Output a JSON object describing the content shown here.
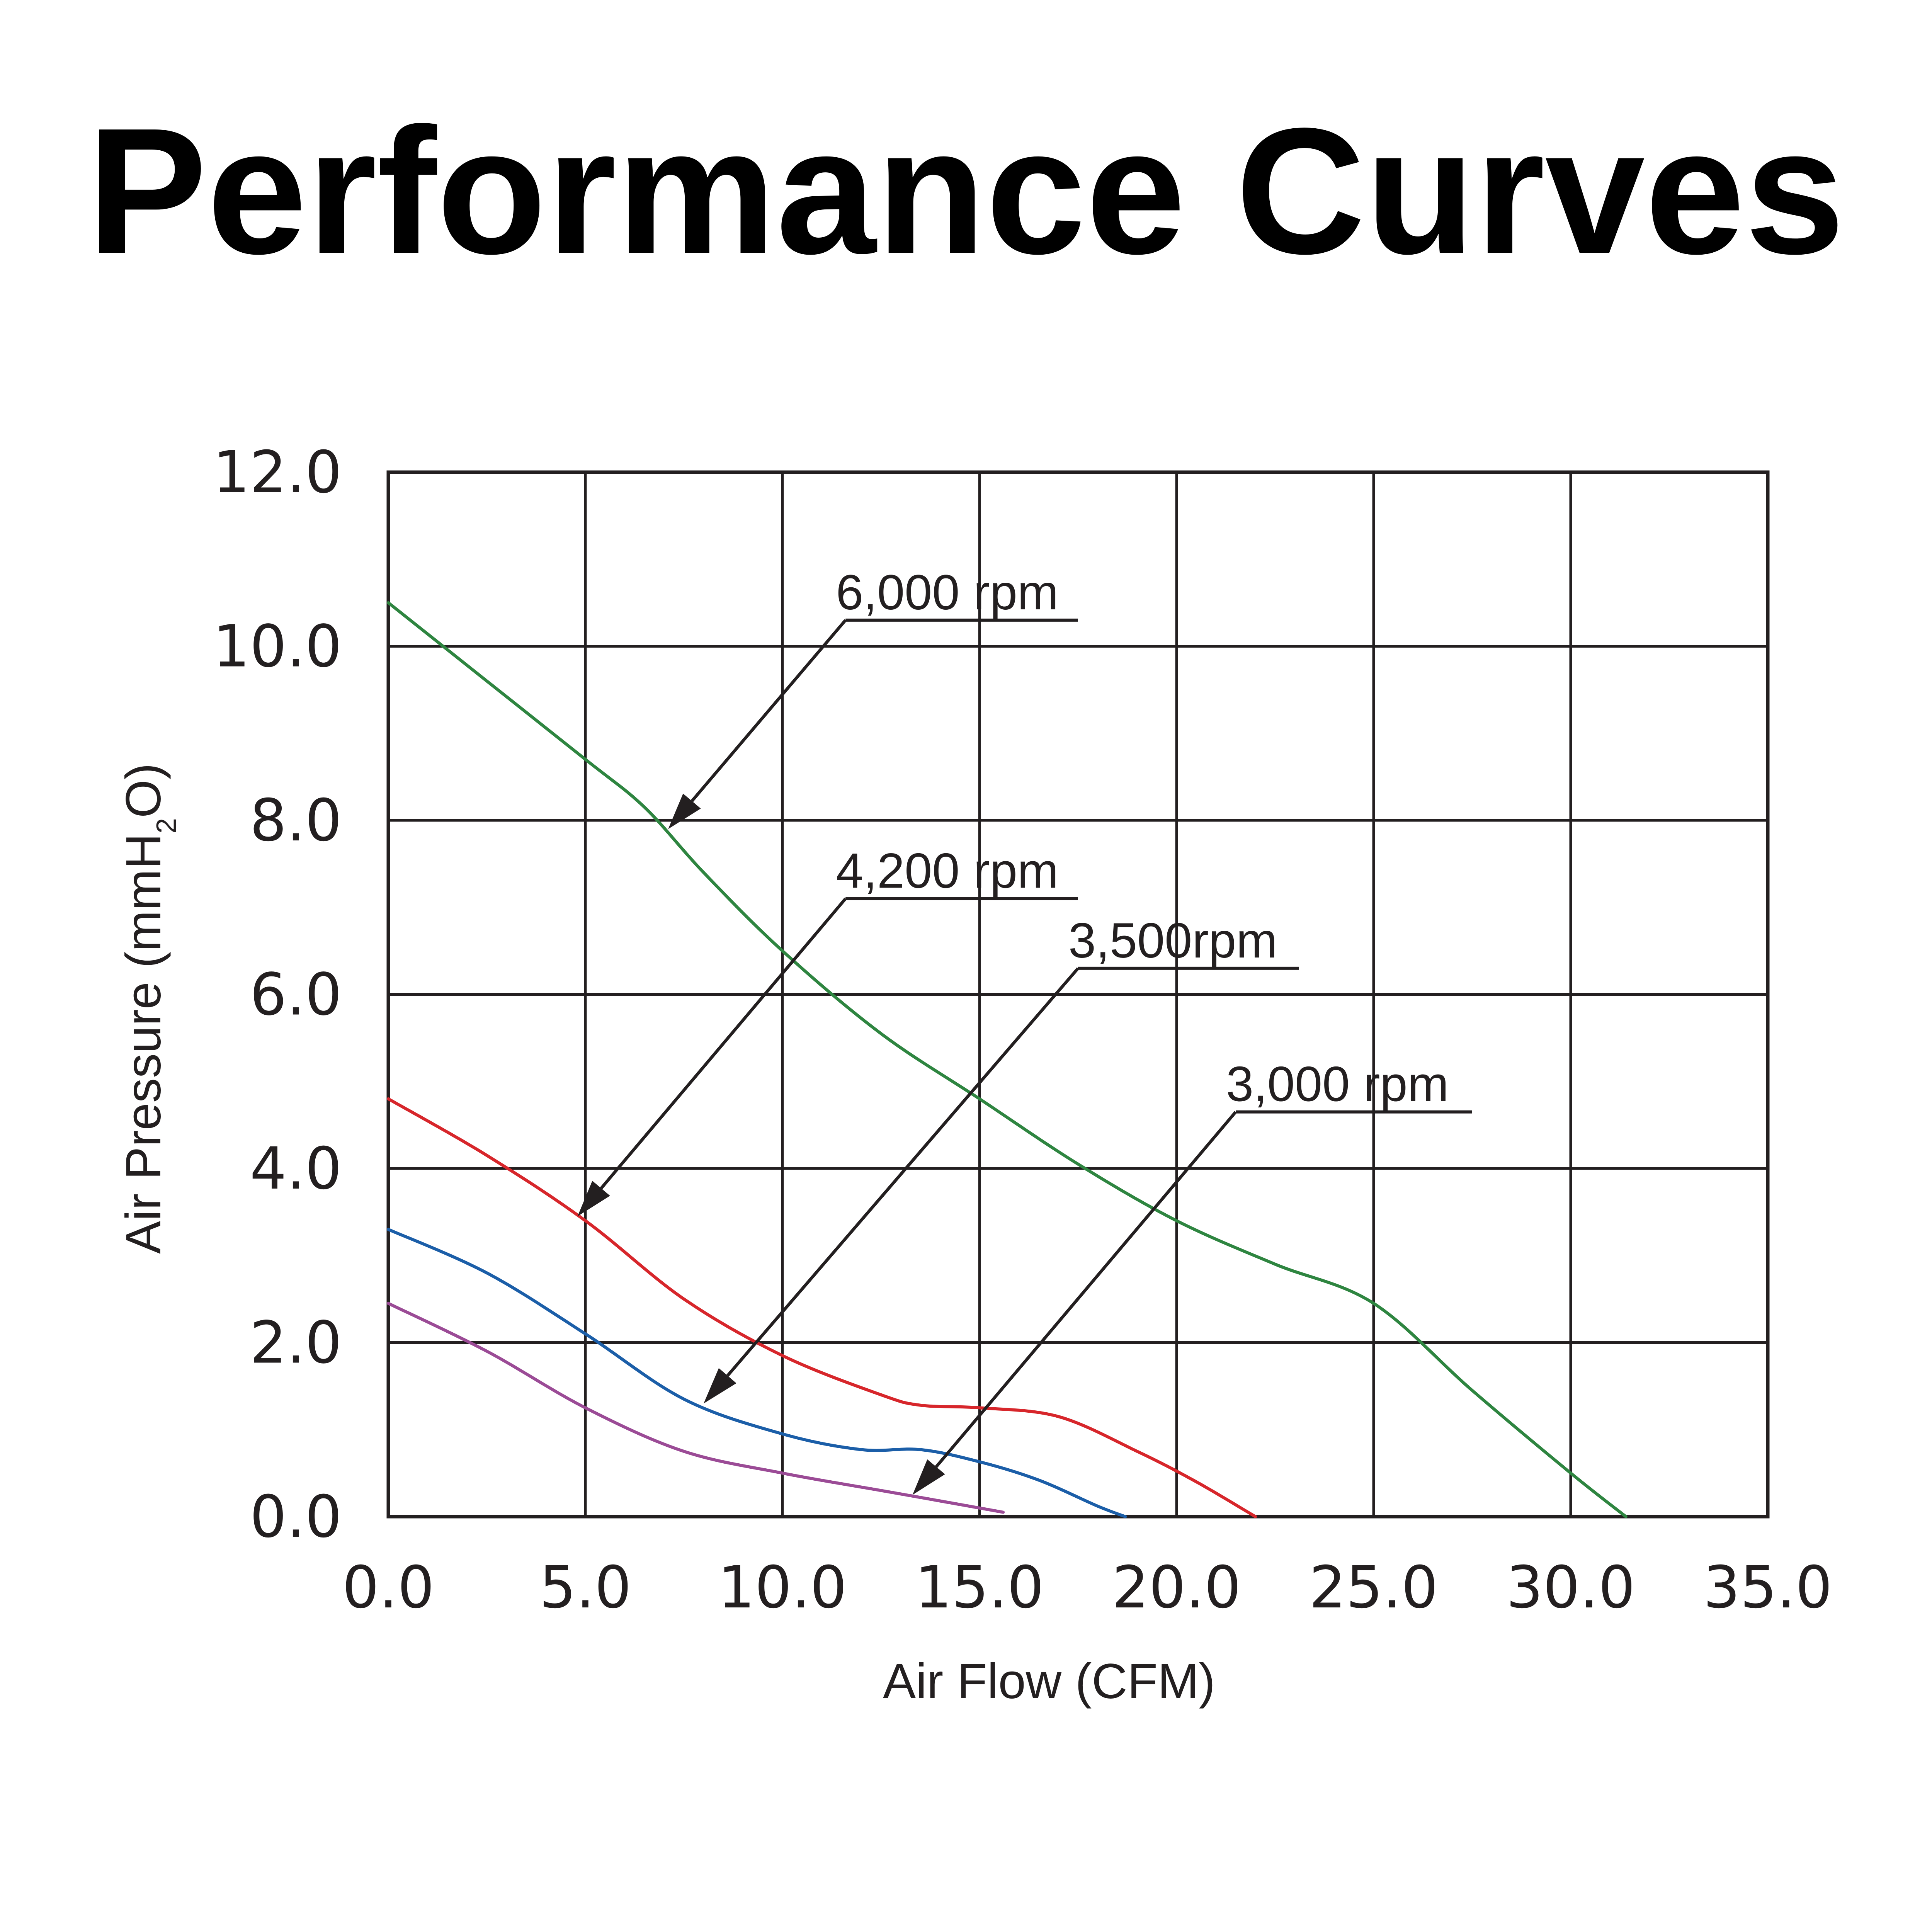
{
  "chart_data": {
    "type": "line",
    "title": "Performance Curves",
    "xlabel": "Air Flow (CFM)",
    "ylabel": {
      "main": "Air Pressure (mmH",
      "sub": "2",
      "end": "O)"
    },
    "xlim": [
      0,
      35
    ],
    "ylim": [
      0,
      12
    ],
    "x_ticks": [
      0,
      5,
      10,
      15,
      20,
      25,
      30,
      35
    ],
    "x_tick_labels": [
      "0.0",
      "5.0",
      "10.0",
      "15.0",
      "20.0",
      "25.0",
      "30.0",
      "35.0"
    ],
    "y_ticks": [
      0,
      2,
      4,
      6,
      8,
      10,
      12
    ],
    "y_tick_labels": [
      "0.0",
      "2.0",
      "4.0",
      "6.0",
      "8.0",
      "10.0",
      "12.0"
    ],
    "grid": true,
    "series": [
      {
        "name": "6,000 rpm",
        "color": "#2e8540",
        "x": [
          0,
          2.5,
          5,
          6.5,
          8,
          10,
          12.5,
          15,
          17.5,
          20,
          22.5,
          25,
          27.5,
          30,
          31.4
        ],
        "y": [
          10.5,
          9.6,
          8.7,
          8.15,
          7.4,
          6.5,
          5.55,
          4.8,
          4.05,
          3.4,
          2.9,
          2.45,
          1.45,
          0.5,
          0
        ]
      },
      {
        "name": "4,200 rpm",
        "color": "#d7262b",
        "x": [
          0,
          2.5,
          5,
          7.5,
          10,
          12.5,
          13.5,
          15,
          17,
          19,
          20.5,
          22
        ],
        "y": [
          4.8,
          4.15,
          3.4,
          2.5,
          1.85,
          1.4,
          1.28,
          1.25,
          1.15,
          0.75,
          0.4,
          0
        ]
      },
      {
        "name": "3,500rpm",
        "color": "#1b5ea8",
        "x": [
          0,
          2.5,
          5,
          7.5,
          10,
          12,
          13.5,
          15,
          16.5,
          18,
          18.7
        ],
        "y": [
          3.3,
          2.8,
          2.1,
          1.35,
          0.95,
          0.77,
          0.77,
          0.63,
          0.42,
          0.12,
          0
        ]
      },
      {
        "name": "3,000 rpm",
        "color": "#9b4b96",
        "x": [
          0,
          2.5,
          5,
          7.5,
          10,
          12.5,
          14,
          15.6
        ],
        "y": [
          2.45,
          1.9,
          1.25,
          0.75,
          0.5,
          0.3,
          0.18,
          0.05
        ]
      }
    ],
    "annotations": [
      {
        "text": "6,000 rpm",
        "series": "6,000 rpm",
        "label_x": 11.6,
        "label_y": 10.3,
        "line_end_x": 17.5,
        "arrow_x": 7.1,
        "arrow_y": 7.9
      },
      {
        "text": "4,200 rpm",
        "series": "4,200 rpm",
        "label_x": 11.6,
        "label_y": 7.1,
        "line_end_x": 17.5,
        "arrow_x": 4.8,
        "arrow_y": 3.45
      },
      {
        "text": "3,500rpm",
        "series": "3,500rpm",
        "label_x": 17.5,
        "label_y": 6.3,
        "line_end_x": 23.1,
        "arrow_x": 8.0,
        "arrow_y": 1.3
      },
      {
        "text": "3,000 rpm",
        "series": "3,000 rpm",
        "label_x": 21.5,
        "label_y": 4.65,
        "line_end_x": 27.5,
        "arrow_x": 13.3,
        "arrow_y": 0.25
      }
    ]
  }
}
